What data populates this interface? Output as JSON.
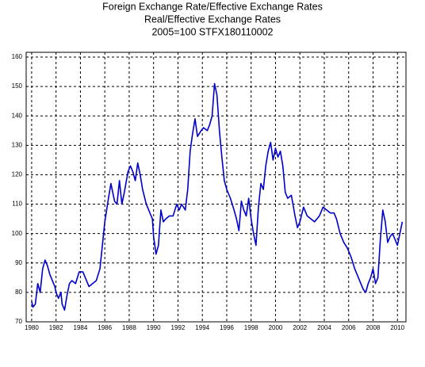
{
  "chart_data": {
    "type": "line",
    "title": "Foreign Exchange Rate/Effective Exchange Rates",
    "subtitle": [
      "Real/Effective Exchange Rates",
      "2005=100 STFX180110002"
    ],
    "xlim": [
      1979.55,
      2010.7
    ],
    "ylim": [
      70,
      160
    ],
    "xticks": [
      1980,
      1982,
      1984,
      1986,
      1988,
      1990,
      1992,
      1994,
      1996,
      1998,
      2000,
      2002,
      2004,
      2006,
      2008,
      2010
    ],
    "yticks": [
      70,
      80,
      90,
      100,
      110,
      120,
      130,
      140,
      150,
      160
    ],
    "grid": true,
    "series": [
      {
        "color": "#0000cc",
        "x": [
          1980.0,
          1980.1,
          1980.3,
          1980.5,
          1980.7,
          1980.9,
          1981.1,
          1981.3,
          1981.5,
          1981.7,
          1981.9,
          1982.0,
          1982.2,
          1982.4,
          1982.5,
          1982.7,
          1982.9,
          1983.1,
          1983.3,
          1983.6,
          1983.9,
          1984.2,
          1984.4,
          1984.7,
          1985.0,
          1985.3,
          1985.6,
          1985.8,
          1986.0,
          1986.3,
          1986.5,
          1986.8,
          1987.0,
          1987.2,
          1987.4,
          1987.6,
          1987.9,
          1988.1,
          1988.3,
          1988.5,
          1988.7,
          1988.9,
          1989.1,
          1989.4,
          1989.7,
          1989.9,
          1990.0,
          1990.2,
          1990.4,
          1990.6,
          1990.8,
          1991.0,
          1991.3,
          1991.6,
          1991.9,
          1992.1,
          1992.3,
          1992.6,
          1992.8,
          1993.0,
          1993.2,
          1993.4,
          1993.6,
          1993.9,
          1994.1,
          1994.4,
          1994.6,
          1994.8,
          1995.0,
          1995.2,
          1995.4,
          1995.6,
          1995.8,
          1996.0,
          1996.3,
          1996.6,
          1996.8,
          1997.0,
          1997.2,
          1997.4,
          1997.6,
          1997.8,
          1998.0,
          1998.2,
          1998.4,
          1998.6,
          1998.8,
          1999.0,
          1999.2,
          1999.4,
          1999.6,
          1999.8,
          2000.0,
          2000.2,
          2000.4,
          2000.6,
          2000.8,
          2001.0,
          2001.3,
          2001.6,
          2001.8,
          2002.0,
          2002.3,
          2002.6,
          2002.9,
          2003.2,
          2003.6,
          2003.9,
          2004.2,
          2004.5,
          2004.8,
          2005.0,
          2005.3,
          2005.6,
          2005.9,
          2006.2,
          2006.5,
          2006.8,
          2007.0,
          2007.2,
          2007.4,
          2007.6,
          2007.8,
          2008.0,
          2008.2,
          2008.4,
          2008.6,
          2008.8,
          2009.0,
          2009.2,
          2009.4,
          2009.6,
          2009.8,
          2010.0,
          2010.2,
          2010.4
        ],
        "values": [
          77,
          75,
          76,
          83,
          80,
          88,
          91,
          89,
          86,
          84,
          82,
          80,
          78,
          80,
          76,
          74,
          79,
          83,
          84,
          83,
          87,
          87,
          85,
          82,
          83,
          84,
          88,
          96,
          104,
          112,
          117,
          111,
          110,
          118,
          110,
          114,
          121,
          123,
          121,
          118,
          124,
          120,
          115,
          110,
          107,
          105,
          99,
          93,
          96,
          108,
          104,
          105,
          106,
          106,
          110,
          108,
          110,
          108,
          115,
          128,
          134,
          139,
          133,
          135,
          136,
          135,
          137,
          140,
          151,
          147,
          135,
          126,
          118,
          115,
          112,
          108,
          105,
          101,
          111,
          108,
          106,
          112,
          105,
          100,
          96,
          109,
          117,
          115,
          123,
          128,
          131,
          125,
          129,
          126,
          128,
          123,
          114,
          112,
          113,
          106,
          102,
          104,
          109,
          106,
          105,
          104,
          106,
          109,
          108,
          107,
          107,
          105,
          100,
          97,
          95,
          92,
          88,
          85,
          83,
          81,
          80,
          83,
          85,
          88,
          83,
          85,
          98,
          108,
          104,
          97,
          99,
          100,
          98,
          96,
          100,
          104
        ]
      }
    ]
  }
}
